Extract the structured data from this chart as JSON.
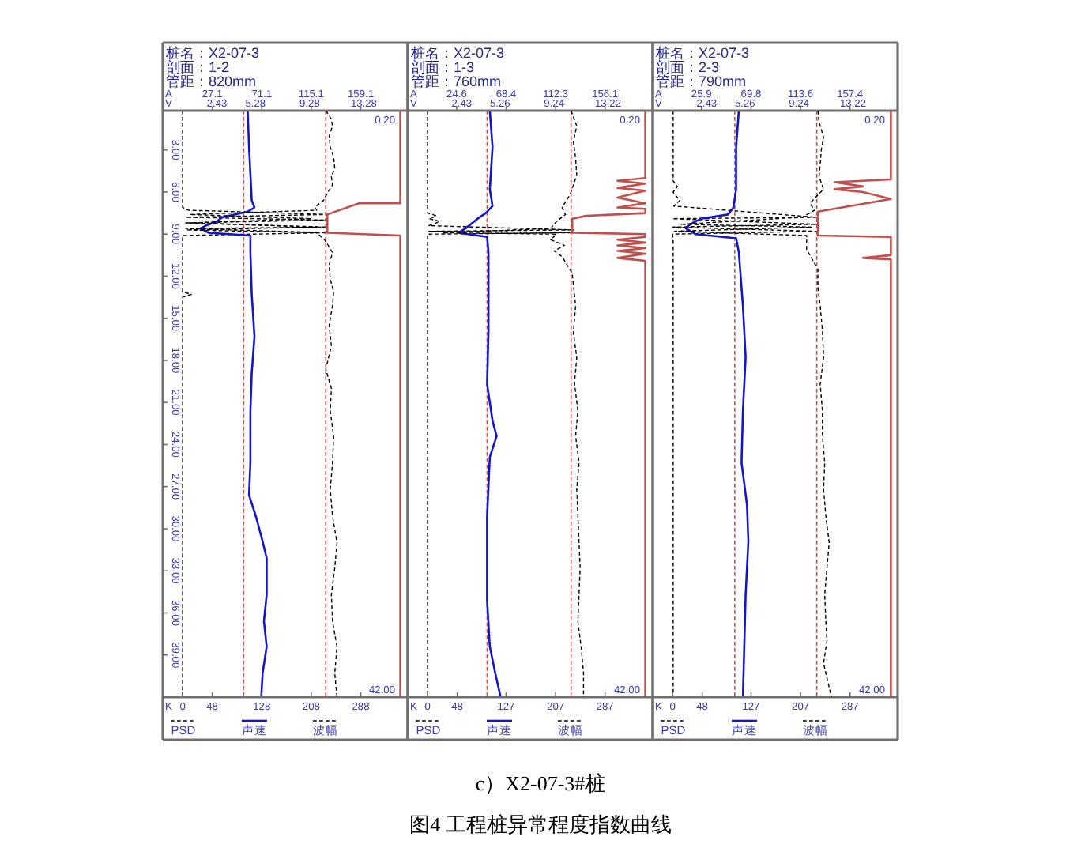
{
  "chart_data": [
    {
      "type": "line",
      "title": "桩名：X2-07-3",
      "subtitle": "剖面：1-2\n管距：820mm",
      "xlabel": "K",
      "x2label": "V",
      "xlim": [
        -32,
        364
      ],
      "xticks": [
        0,
        48,
        128,
        208,
        288
      ],
      "x2lim": [
        -1.57,
        16.52
      ],
      "x2ticks": [
        2.43,
        5.28,
        9.28,
        13.28
      ],
      "ylim": [
        42,
        0.2
      ],
      "yticks": [
        {
          "value": 3,
          "label": "3.00"
        },
        {
          "value": 6,
          "label": "6.00"
        },
        {
          "value": 9,
          "label": "9.00"
        },
        {
          "value": 12,
          "label": "12.00"
        },
        {
          "value": 15,
          "label": "15.00"
        },
        {
          "value": 18,
          "label": "18.00"
        },
        {
          "value": 21,
          "label": "21.00"
        },
        {
          "value": 24,
          "label": "24.00"
        },
        {
          "value": 27,
          "label": "27.00"
        },
        {
          "value": 30,
          "label": "30.00"
        },
        {
          "value": 33,
          "label": "33.00"
        },
        {
          "value": 36,
          "label": "36.00"
        },
        {
          "value": 39,
          "label": "39.00"
        }
      ],
      "legend": "bottom",
      "series": [
        {
          "name": "PSD",
          "color": "#000000",
          "line_style": "dashed",
          "x": [
            0,
            0,
            10,
            234,
            5,
            234,
            5,
            234,
            5,
            234,
            0,
            0,
            14,
            0,
            0
          ],
          "values": [
            0.2,
            7.1,
            7.3,
            7.6,
            7.8,
            8.0,
            8.2,
            8.5,
            8.6,
            8.9,
            9.1,
            13.1,
            13.3,
            13.5,
            42
          ]
        },
        {
          "name": "声速",
          "color": "#1414c8",
          "axis": "x2",
          "line_style": "solid",
          "x": [
            4.7,
            4.8,
            4.9,
            5.0,
            5.2,
            4.7,
            2.8,
            2.4,
            1.6,
            1.2,
            1.8,
            4.9,
            4.9,
            5.0,
            5.2,
            5.0,
            4.9,
            4.9,
            4.8,
            5.3,
            5.8,
            6.1,
            6.1,
            5.9,
            6.1,
            5.8,
            5.7
          ],
          "values": [
            0.2,
            2.8,
            4.7,
            6.6,
            7.1,
            7.4,
            7.8,
            8.1,
            8.4,
            8.6,
            8.9,
            9.1,
            10.3,
            13.3,
            16.3,
            18.9,
            21.6,
            25.3,
            27.6,
            29.1,
            30.9,
            32.1,
            34.7,
            36.6,
            38.4,
            40.3,
            42
          ]
        },
        {
          "color": "#c0504d",
          "line_style": "solid",
          "x": [
            352,
            352,
            285,
            234,
            234,
            352,
            352
          ],
          "values": [
            0.2,
            6.8,
            6.8,
            7.6,
            8.9,
            9.1,
            42
          ]
        }
      ],
      "ref_lines": [
        {
          "axis": "x2",
          "value": 4.4,
          "color": "#c0504d",
          "line_style": "dashed"
        }
      ],
      "annotations": [
        "0.20",
        "42.00"
      ]
    },
    {
      "type": "line",
      "xlabel": "A",
      "xlim": [
        -16.9,
        200.9
      ],
      "xticks": [
        27.1,
        71.1,
        115.1,
        159.1
      ],
      "ylim": [
        42,
        0.2
      ],
      "tick_labels": "x",
      "legend": "bottom",
      "series": [
        {
          "name": "波幅",
          "color": "#000000",
          "line_style": "dashed",
          "x": [
            128,
            133,
            134,
            131,
            132,
            135,
            136,
            133,
            134,
            130,
            126,
            118,
            120,
            7,
            115,
            7,
            120,
            4,
            120,
            127,
            134,
            131,
            132,
            135,
            134,
            131,
            133,
            128,
            133,
            132,
            135,
            134,
            132,
            134,
            138,
            136,
            133,
            134,
            138,
            136,
            138
          ],
          "values": [
            0.2,
            0.8,
            1.3,
            2.0,
            2.8,
            3.5,
            4.3,
            4.9,
            5.5,
            6.0,
            6.6,
            7.1,
            7.3,
            7.6,
            7.9,
            8.2,
            8.5,
            8.7,
            8.9,
            9.4,
            10.3,
            11.2,
            12.2,
            13.1,
            14.1,
            15.5,
            17.0,
            18.6,
            20.0,
            21.6,
            23.4,
            25.3,
            27.2,
            29.1,
            31.0,
            32.8,
            34.7,
            36.6,
            38.4,
            40.3,
            42
          ]
        }
      ],
      "ref_lines": [
        {
          "axis": "x",
          "value": 128,
          "color": "#c0504d",
          "line_style": "dashed"
        }
      ]
    },
    {
      "type": "line",
      "title": "桩名：X2-07-3",
      "subtitle": "剖面：1-3\n管距：760mm",
      "xlabel": "K",
      "x2label": "V",
      "tick_labels": "x",
      "xlim": [
        -32,
        364
      ],
      "xticks": [
        0,
        48,
        127,
        207,
        287
      ],
      "x2lim": [
        -1.55,
        16.51
      ],
      "x2ticks": [
        2.43,
        5.26,
        9.24,
        13.22
      ],
      "ylim": [
        42,
        0.2
      ],
      "legend": "bottom",
      "series": [
        {
          "name": "PSD",
          "color": "#000000",
          "line_style": "dashed",
          "x": [
            0,
            0,
            15,
            3,
            20,
            2,
            237,
            2,
            237,
            0,
            0
          ],
          "values": [
            0.2,
            7.5,
            7.7,
            7.9,
            8.1,
            8.4,
            8.7,
            8.8,
            8.9,
            9.0,
            42
          ]
        },
        {
          "name": "声速",
          "color": "#1414c8",
          "axis": "x2",
          "line_style": "solid",
          "x": [
            4.5,
            4.7,
            4.5,
            4.7,
            4.2,
            3.6,
            2.7,
            2.2,
            4.3,
            4.4,
            4.4,
            4.3,
            4.7,
            5.0,
            4.5,
            4.3,
            4.3,
            4.5,
            4.9,
            5.3
          ],
          "values": [
            0.2,
            2.8,
            5.8,
            7.0,
            7.5,
            7.9,
            8.6,
            8.9,
            9.2,
            10.3,
            15.9,
            19.7,
            22.3,
            23.4,
            24.9,
            29.1,
            35.1,
            38.4,
            40.3,
            42
          ]
        },
        {
          "color": "#c0504d",
          "line_style": "solid",
          "x": [
            352,
            352,
            307,
            352,
            307,
            352,
            307,
            352,
            307,
            352,
            352,
            256,
            234,
            234,
            352,
            352,
            307,
            352,
            307,
            352,
            307,
            352,
            307,
            352,
            352
          ],
          "values": [
            0.2,
            5.0,
            5.2,
            5.4,
            5.7,
            5.9,
            6.4,
            6.8,
            7.1,
            7.2,
            7.5,
            7.7,
            7.9,
            8.9,
            9.0,
            9.2,
            9.4,
            9.6,
            9.8,
            10.0,
            10.2,
            10.4,
            10.7,
            10.9,
            42
          ]
        }
      ],
      "ref_lines": [
        {
          "axis": "x2",
          "value": 4.3,
          "color": "#c0504d",
          "line_style": "dashed"
        }
      ],
      "annotations": [
        "0.20",
        "42.00",
        "c）X2-07-3#桩",
        "图4 工程桩异常程度指数曲线"
      ]
    },
    {
      "type": "line",
      "xlabel": "A",
      "xlim": [
        -18.75,
        198.3
      ],
      "xticks": [
        24.6,
        68.4,
        112.3,
        156.1
      ],
      "ylim": [
        42,
        0.2
      ],
      "tick_labels": "x",
      "legend": "bottom",
      "series": [
        {
          "name": "波幅",
          "color": "#000000",
          "line_style": "dashed",
          "x": [
            126,
            131,
            128,
            130,
            131,
            125,
            118,
            121,
            113,
            108,
            12,
            113,
            108,
            120,
            111,
            118,
            127,
            130,
            128,
            131,
            129,
            132,
            130,
            133,
            131,
            132,
            134,
            132,
            135,
            137,
            137
          ],
          "values": [
            0.2,
            1.3,
            2.4,
            3.6,
            4.8,
            6.2,
            7.1,
            7.6,
            8.1,
            8.6,
            8.9,
            9.0,
            9.4,
            9.8,
            10.2,
            10.6,
            11.8,
            14.1,
            16.0,
            17.8,
            19.6,
            21.6,
            23.4,
            25.3,
            27.2,
            29.1,
            32.8,
            36.6,
            38.5,
            40.3,
            42
          ]
        }
      ],
      "ref_lines": [
        {
          "axis": "x",
          "value": 126,
          "color": "#c0504d",
          "line_style": "dashed"
        }
      ]
    },
    {
      "type": "line",
      "title": "桩名：X2-07-3",
      "subtitle": "剖面：2-3\n管距：790mm",
      "xlabel": "K",
      "x2label": "V",
      "tick_labels": "x",
      "xlim": [
        -32,
        364
      ],
      "xticks": [
        0,
        48,
        127,
        207,
        287
      ],
      "x2lim": [
        -1.55,
        16.51
      ],
      "x2ticks": [
        2.43,
        5.26,
        9.24,
        13.22
      ],
      "ylim": [
        42,
        0.2
      ],
      "legend": "bottom",
      "series": [
        {
          "name": "PSD",
          "color": "#000000",
          "line_style": "dashed",
          "x": [
            1,
            1,
            8,
            1,
            12,
            2,
            233,
            0,
            233,
            0,
            233,
            0,
            1,
            1
          ],
          "values": [
            0.2,
            5.2,
            5.6,
            6.0,
            6.6,
            7.0,
            7.8,
            7.9,
            8.3,
            8.5,
            8.8,
            9.0,
            9.3,
            42
          ]
        },
        {
          "name": "声速",
          "color": "#1414c8",
          "axis": "x2",
          "line_style": "solid",
          "x": [
            4.8,
            4.6,
            4.6,
            4.4,
            4.0,
            2.0,
            1.2,
            0.9,
            1.6,
            4.6,
            4.8,
            5.1,
            5.3,
            5.1,
            5.0,
            5.4,
            5.5,
            5.3,
            5.2,
            5.1
          ],
          "values": [
            0.2,
            2.8,
            5.8,
            7.1,
            7.6,
            7.9,
            8.3,
            8.6,
            9.0,
            9.3,
            10.3,
            14.1,
            17.8,
            21.6,
            25.3,
            28.3,
            30.9,
            34.7,
            38.4,
            42
          ]
        },
        {
          "color": "#c0504d",
          "line_style": "solid",
          "x": [
            353,
            353,
            262,
            308,
            262,
            308,
            353,
            235,
            235,
            353,
            353,
            308,
            353,
            353
          ],
          "values": [
            0.2,
            5.1,
            5.3,
            5.6,
            5.8,
            6.0,
            6.5,
            7.4,
            9.1,
            9.2,
            10.5,
            10.7,
            10.8,
            42
          ]
        }
      ],
      "ref_lines": [
        {
          "axis": "x2",
          "value": 4.5,
          "color": "#c0504d",
          "line_style": "dashed"
        }
      ],
      "annotations": [
        "0.20",
        "42.00"
      ]
    },
    {
      "type": "line",
      "xlabel": "A",
      "xlim": [
        -17.25,
        199.6
      ],
      "xticks": [
        25.9,
        69.8,
        113.6,
        157.4
      ],
      "ylim": [
        42,
        0.2
      ],
      "tick_labels": "x",
      "legend": "bottom",
      "series": [
        {
          "name": "波幅",
          "color": "#000000",
          "line_style": "dashed",
          "x": [
            129,
            130,
            134,
            132,
            131,
            130,
            134,
            122,
            126,
            115,
            7,
            124,
            2,
            119,
            119,
            129,
            129,
            131,
            133,
            134,
            131,
            133,
            133,
            135,
            134,
            136,
            139,
            137,
            135,
            136,
            137,
            134,
            141
          ],
          "values": [
            0.2,
            1.0,
            2.1,
            3.0,
            4.0,
            4.9,
            5.8,
            6.8,
            7.3,
            7.8,
            8.3,
            8.5,
            8.8,
            9.1,
            10.1,
            11.5,
            12.8,
            14.1,
            15.9,
            17.8,
            19.7,
            21.6,
            23.4,
            25.3,
            27.2,
            29.1,
            31.0,
            32.8,
            34.7,
            36.6,
            38.0,
            39.6,
            42
          ]
        }
      ],
      "ref_lines": [
        {
          "axis": "x",
          "value": 128,
          "color": "#c0504d",
          "line_style": "dashed"
        }
      ]
    }
  ]
}
